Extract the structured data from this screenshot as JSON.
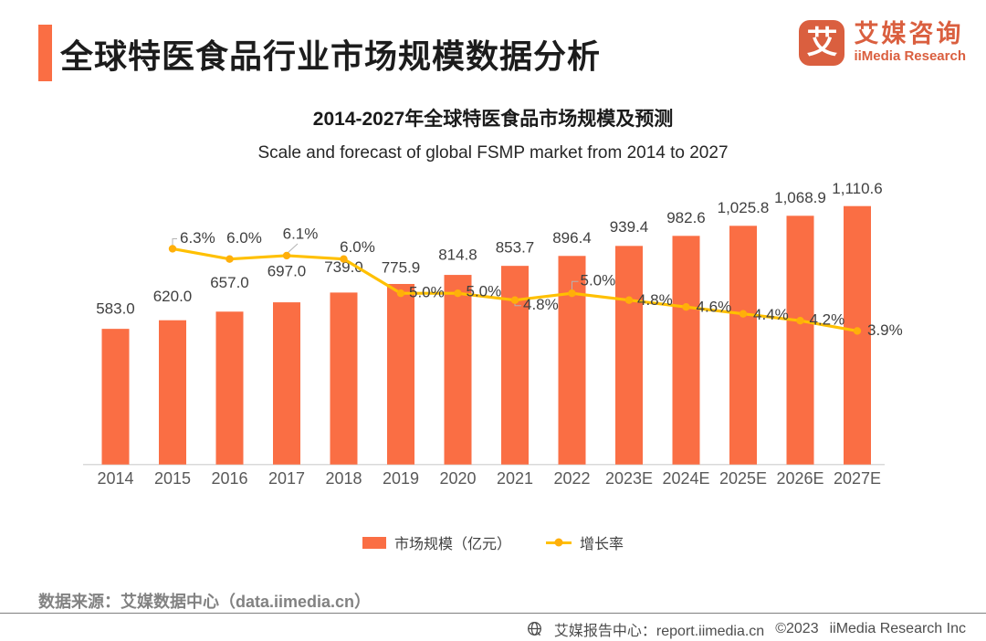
{
  "header": {
    "title": "全球特医食品行业市场规模数据分析",
    "logo": {
      "glyph": "艾",
      "name_cn": "艾媒咨询",
      "name_en": "iiMedia Research"
    }
  },
  "chart_data": {
    "type": "combo-bar-line",
    "title": "2014-2027年全球特医食品市场规模及预测",
    "subtitle": "Scale and forecast of global FSMP market from 2014 to 2027",
    "categories": [
      "2014",
      "2015",
      "2016",
      "2017",
      "2018",
      "2019",
      "2020",
      "2021",
      "2022",
      "2023E",
      "2024E",
      "2025E",
      "2026E",
      "2027E"
    ],
    "series": [
      {
        "name": "市场规模（亿元）",
        "type": "bar",
        "values": [
          583.0,
          620.0,
          657.0,
          697.0,
          739.0,
          775.9,
          814.8,
          853.7,
          896.4,
          939.4,
          982.6,
          1025.8,
          1068.9,
          1110.6
        ],
        "color": "#FA6E44"
      },
      {
        "name": "增长率",
        "type": "line",
        "unit": "%",
        "values": [
          null,
          6.3,
          6.0,
          6.1,
          6.0,
          5.0,
          5.0,
          4.8,
          5.0,
          4.8,
          4.6,
          4.4,
          4.2,
          3.9
        ],
        "color": "#FFC000",
        "marker_color": "#FFAF0A"
      }
    ],
    "value_axis_visible": false,
    "gridlines": false,
    "legend_position": "bottom",
    "label_color": "#404040",
    "tick_color": "#595959",
    "axis_line_color": "#D9D9D9",
    "leader_line_color": "#B3B3B3"
  },
  "footer": {
    "source": "数据来源：艾媒数据中心（data.iimedia.cn）"
  },
  "bottom_bar": {
    "report_center": "艾媒报告中心：report.iimedia.cn",
    "copyright": "©2023",
    "company": "iiMedia Research Inc"
  },
  "brand_colors": {
    "primary_orange": "#FA6E44",
    "logo_orange": "#DA5F3F"
  }
}
